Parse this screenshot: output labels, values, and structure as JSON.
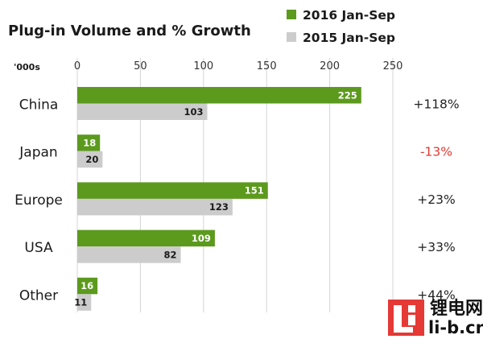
{
  "chart_data": {
    "type": "bar",
    "orientation": "horizontal",
    "title": "Plug-in Volume and % Growth",
    "unit_label": "'000s",
    "xlim": [
      0,
      250
    ],
    "xticks": [
      0,
      50,
      100,
      150,
      200,
      250
    ],
    "grid": true,
    "legend_position": "top-right",
    "categories": [
      "China",
      "Japan",
      "Europe",
      "USA",
      "Other"
    ],
    "series": [
      {
        "name": "2016 Jan-Sep",
        "color": "#5c9a1e",
        "values": [
          225,
          18,
          151,
          109,
          16
        ]
      },
      {
        "name": "2015 Jan-Sep",
        "color": "#cccccc",
        "values": [
          103,
          20,
          123,
          82,
          11
        ]
      }
    ],
    "growth": [
      {
        "label": "+118%",
        "color": "#222222"
      },
      {
        "label": "-13%",
        "color": "#e03a2f"
      },
      {
        "label": "+23%",
        "color": "#222222"
      },
      {
        "label": "+33%",
        "color": "#222222"
      },
      {
        "label": "+44%",
        "color": "#222222"
      }
    ]
  },
  "watermark": {
    "logo_letters": "Li",
    "chinese_text": "锂电网",
    "domain_text": "li-b.cn",
    "color": "#e53935"
  }
}
